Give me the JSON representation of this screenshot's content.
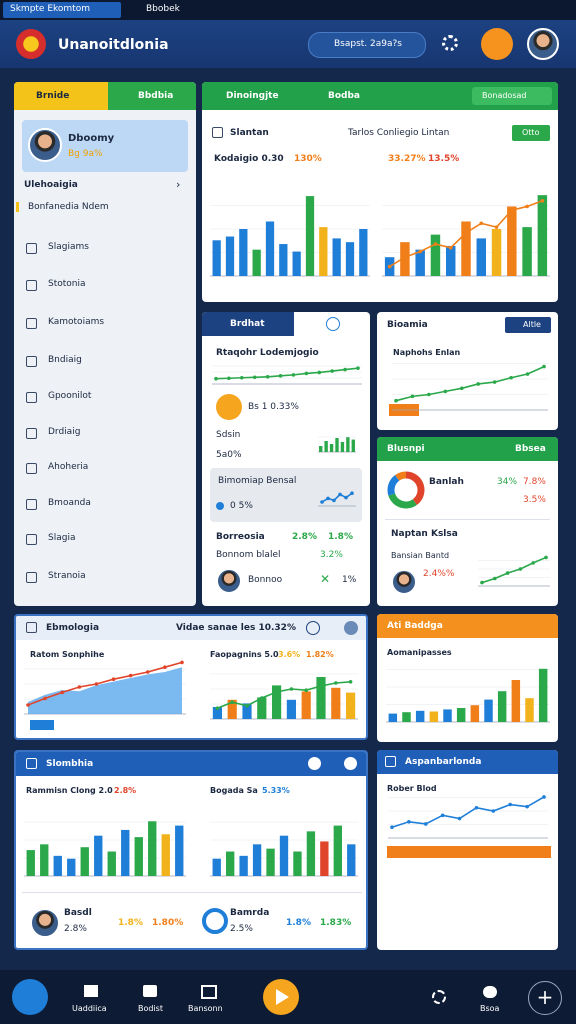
{
  "status_bar": {
    "app": "Skmpte Ekomtom",
    "tab": "Bbobek"
  },
  "header": {
    "title": "Unanoitdlonia",
    "search": "Bsapst. 2a9a?s"
  },
  "sidebar": {
    "tabs": [
      "Brnide",
      "Bbdbia"
    ],
    "profile": {
      "name": "Dboomy",
      "sub": "Bg 9a%"
    },
    "section": "Ulehoaigia",
    "subitem": "Bonfanedia Ndem",
    "items": [
      "Slagiams",
      "Stotonia",
      "Kamotoiams",
      "Bndiaig",
      "Gpoonilot",
      "Drdiaig",
      "Ahoheria",
      "Bmoanda",
      "Slagia",
      "Stranoia"
    ]
  },
  "overview": {
    "tab": "Dinoingjte",
    "tab2": "Bodba",
    "action": "Bonadosad",
    "title": "Slantan",
    "meta": "Tarlos Conliegio Lintan",
    "button": "Otto",
    "left_label": "Kodaigio 0.30",
    "left_value": "130%",
    "right_value": "33.27%",
    "right_value2": "13.5%"
  },
  "trend_panel": {
    "tab": "Brdhat",
    "chart_title": "Rtaqohr Lodemjogio",
    "coin_text": "Bs 1 0.33%",
    "stat_label": "Sdsin",
    "stat_value": "5a0%",
    "box_title": "Bimomiap Bensal",
    "box_value": "0 5%",
    "row_label": "Borreosia",
    "row_v1": "2.8%",
    "row_v2": "1.8%",
    "row_sub": "Bonnom blalel",
    "row_sub_v": "3.2%",
    "user": "Bonnoo",
    "user_v": "1%"
  },
  "growth_panel": {
    "title": "Bioamia",
    "button": "Altle",
    "chart_title": "Naphohs Enlan"
  },
  "share_panel": {
    "title": "Blusnpi",
    "title2": "Bbsea",
    "label": "Banlah",
    "v1": "34%",
    "v2": "7.8%",
    "v3": "3.5%",
    "section": "Naptan Kslsa",
    "sub": "Bansian Bantd",
    "user_v": "2.4%%"
  },
  "mid_panel": {
    "title": "Ebmologia",
    "note": "Vidae sanae les 10.32%",
    "left_title": "Ratom Sonphihe",
    "right_title": "Faopagnins 5.0",
    "right_v1": "3.6%",
    "right_v2": "1.82%"
  },
  "budget_panel": {
    "title": "Ati Baddga",
    "chart_title": "Aomanipasses"
  },
  "lower_panel": {
    "title": "Slombhia",
    "left_title": "Rammisn Clong 2.0",
    "left_v": "2.8%",
    "right_title": "Bogada Sa",
    "right_v": "5.33%",
    "user1": "Basdl",
    "user1_sub": "2.8%",
    "user1_v1": "1.8%",
    "user1_v2": "1.80%",
    "user2": "Bamrda",
    "user2_sub": "2.5%",
    "user2_v1": "1.8%",
    "user2_v2": "1.83%"
  },
  "report_panel": {
    "title": "Aspanbarlonda",
    "chart_title": "Rober Blod"
  },
  "nav": [
    "Uaddiica",
    "Bodist",
    "Bansonn",
    "Bsoa"
  ],
  "charts": [
    {
      "type": "bar",
      "ylim": [
        0,
        100
      ],
      "values": [
        38,
        42,
        50,
        28,
        58,
        34,
        26,
        85,
        52,
        40,
        36,
        50
      ],
      "colors": [
        "#1f7fd8",
        "#1f7fd8",
        "#1f7fd8",
        "#2aa84a",
        "#1f7fd8",
        "#1f7fd8",
        "#1f7fd8",
        "#2aa84a",
        "#f2b21b",
        "#1f7fd8",
        "#1f7fd8",
        "#1f7fd8"
      ]
    },
    {
      "type": "bar",
      "ylim": [
        0,
        100
      ],
      "values": [
        20,
        36,
        28,
        44,
        32,
        58,
        40,
        50,
        74,
        52,
        86
      ],
      "colors": [
        "#1f7fd8",
        "#f07f1a",
        "#1f7fd8",
        "#2aa84a",
        "#1f7fd8",
        "#f07f1a",
        "#1f7fd8",
        "#f2b21b",
        "#f07f1a",
        "#2aa84a",
        "#2aa84a"
      ],
      "trend": [
        10,
        20,
        26,
        34,
        30,
        46,
        56,
        52,
        70,
        74,
        80
      ],
      "trend_color": "#f07f1a"
    },
    {
      "type": "line",
      "ylim": [
        0,
        100
      ],
      "values": [
        22,
        24,
        26,
        28,
        30,
        34,
        38,
        44,
        48,
        54,
        60,
        66
      ],
      "color": "#2aa84a"
    },
    {
      "type": "bar",
      "ylim": [
        0,
        100
      ],
      "values": [
        30,
        55,
        40,
        70,
        50,
        74,
        62
      ],
      "colors": [
        "#2aa84a",
        "#2aa84a",
        "#2aa84a",
        "#2aa84a",
        "#2aa84a",
        "#2aa84a",
        "#2aa84a"
      ]
    },
    {
      "type": "line",
      "ylim": [
        0,
        100
      ],
      "values": [
        20,
        38,
        28,
        58,
        42,
        64
      ],
      "color": "#1f7fd8"
    },
    {
      "type": "line",
      "ylim": [
        0,
        100
      ],
      "values": [
        15,
        22,
        25,
        30,
        35,
        42,
        45,
        52,
        58,
        70
      ],
      "color": "#2aa84a"
    },
    {
      "type": "line",
      "ylim": [
        0,
        100
      ],
      "values": [
        10,
        22,
        38,
        50,
        68,
        84
      ],
      "color": "#2aa84a"
    },
    {
      "type": "area",
      "ylim": [
        0,
        100
      ],
      "values": [
        20,
        32,
        40,
        38,
        48,
        54,
        60,
        66,
        70,
        78
      ],
      "color": "#5aa8ee",
      "trend": [
        15,
        26,
        36,
        45,
        50,
        58,
        64,
        70,
        78,
        86
      ],
      "trend_color": "#e0452b"
    },
    {
      "type": "bar",
      "ylim": [
        0,
        100
      ],
      "values": [
        20,
        32,
        26,
        36,
        56,
        32,
        46,
        70,
        52,
        44
      ],
      "colors": [
        "#1f7fd8",
        "#f07f1a",
        "#1f7fd8",
        "#2aa84a",
        "#2aa84a",
        "#1f7fd8",
        "#f07f1a",
        "#2aa84a",
        "#f07f1a",
        "#f2b21b"
      ],
      "trend": [
        18,
        28,
        22,
        35,
        45,
        50,
        48,
        55,
        60,
        62
      ],
      "trend_color": "#2aa84a"
    },
    {
      "type": "bar",
      "ylim": [
        0,
        100
      ],
      "values": [
        12,
        14,
        16,
        15,
        18,
        20,
        24,
        32,
        44,
        60,
        34,
        76
      ],
      "colors": [
        "#1f7fd8",
        "#2aa84a",
        "#1f7fd8",
        "#f2b21b",
        "#1f7fd8",
        "#2aa84a",
        "#f07f1a",
        "#1f7fd8",
        "#2aa84a",
        "#f07f1a",
        "#f2b21b",
        "#2aa84a"
      ]
    },
    {
      "type": "bar",
      "ylim": [
        0,
        100
      ],
      "values": [
        36,
        44,
        28,
        24,
        40,
        56,
        34,
        64,
        54,
        76,
        58,
        70
      ],
      "colors": [
        "#2aa84a",
        "#2aa84a",
        "#1f7fd8",
        "#1f7fd8",
        "#2aa84a",
        "#1f7fd8",
        "#2aa84a",
        "#1f7fd8",
        "#2aa84a",
        "#2aa84a",
        "#f2b21b",
        "#1f7fd8"
      ]
    },
    {
      "type": "bar",
      "ylim": [
        0,
        100
      ],
      "values": [
        24,
        34,
        28,
        44,
        38,
        56,
        34,
        62,
        48,
        70,
        44
      ],
      "colors": [
        "#1f7fd8",
        "#2aa84a",
        "#1f7fd8",
        "#1f7fd8",
        "#2aa84a",
        "#1f7fd8",
        "#2aa84a",
        "#2aa84a",
        "#e0452b",
        "#2aa84a",
        "#1f7fd8"
      ]
    },
    {
      "type": "line",
      "ylim": [
        0,
        100
      ],
      "values": [
        20,
        30,
        26,
        42,
        36,
        56,
        50,
        62,
        58,
        76
      ],
      "color": "#1f7fd8"
    },
    {
      "type": "donut",
      "values": [
        40,
        30,
        20,
        10
      ],
      "colors": [
        "#e0452b",
        "#2aa84a",
        "#1f7fd8",
        "#f07f1a"
      ]
    }
  ]
}
